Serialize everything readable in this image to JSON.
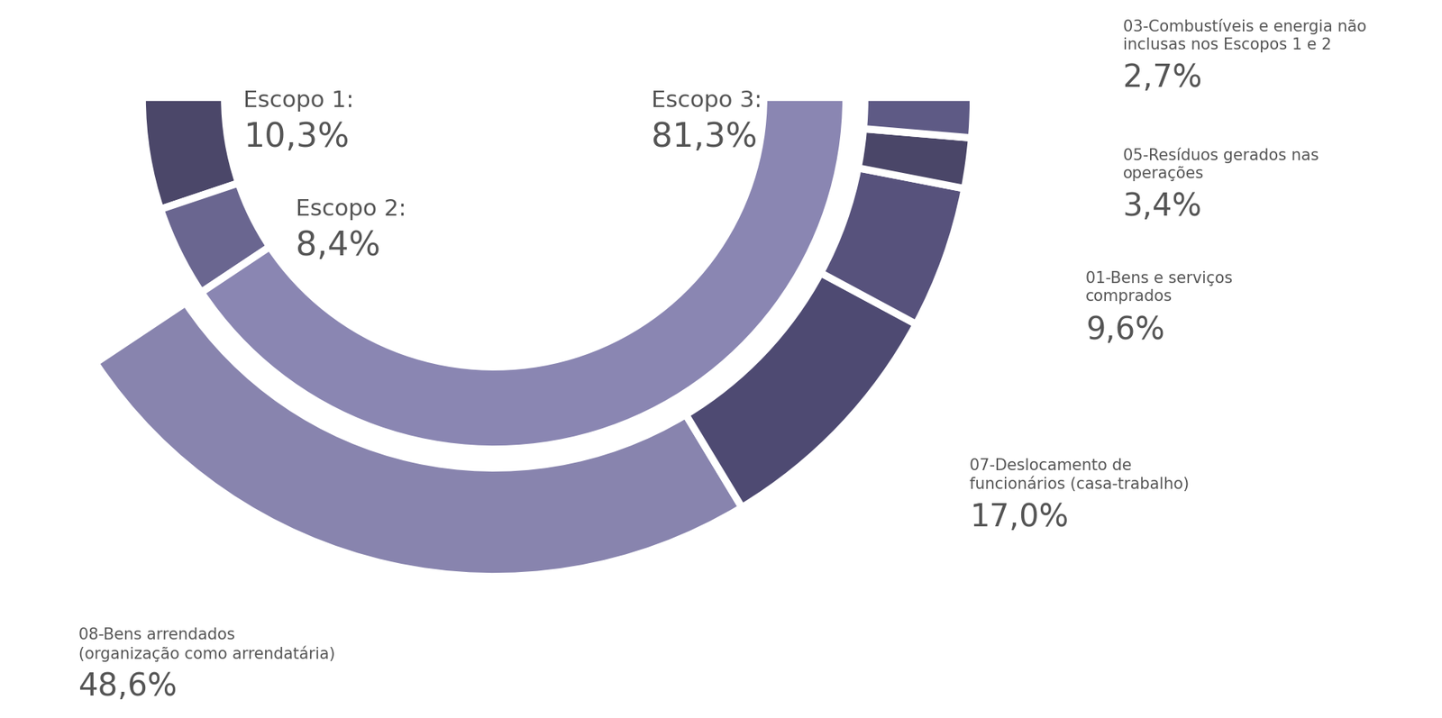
{
  "chart_data": {
    "type": "donut",
    "data_labels": true,
    "rings": [
      {
        "categories": [
          "Escopo 1:",
          "Escopo 2:",
          "Escopo 3:"
        ],
        "values": [
          10.3,
          8.4,
          81.3
        ],
        "value_labels": [
          "10,3%",
          "8,4%",
          "81,3%"
        ],
        "colors": [
          "#4b4769",
          "#6a6690",
          "#8a86b2"
        ]
      },
      {
        "categories": [
          "08-Bens arrendados\n(organização como arrendatária)",
          "07-Deslocamento de\nfuncionários (casa-trabalho)",
          "01-Bens e serviços\ncomprados",
          "05-Resíduos gerados nas\noperações",
          "03-Combustíveis e energia não\ninclusas nos Escopos 1 e 2"
        ],
        "values": [
          48.6,
          17.0,
          9.6,
          3.4,
          2.7
        ],
        "value_labels": [
          "48,6%",
          "17,0%",
          "9,6%",
          "3,4%",
          "2,7%"
        ],
        "colors": [
          "#8884ae",
          "#4e4a72",
          "#57527c",
          "#4a4668",
          "#5e5a85"
        ]
      }
    ]
  }
}
